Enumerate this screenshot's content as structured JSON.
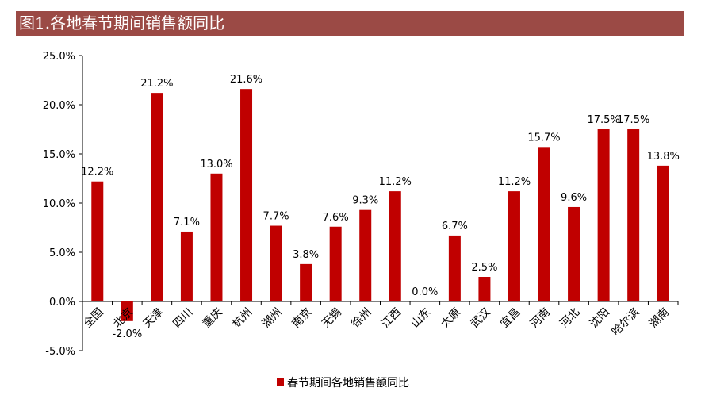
{
  "title": "图1.各地春节期间销售额同比",
  "chart_data": {
    "type": "bar",
    "title": "图1.各地春节期间销售额同比",
    "categories": [
      "全国",
      "北京",
      "天津",
      "四川",
      "重庆",
      "杭州",
      "湖州",
      "南京",
      "无锡",
      "徐州",
      "江西",
      "山东",
      "太原",
      "武汉",
      "宜昌",
      "河南",
      "河北",
      "沈阳",
      "哈尔滨",
      "湖南"
    ],
    "series": [
      {
        "name": "春节期间各地销售额同比",
        "values": [
          12.2,
          -2.0,
          21.2,
          7.1,
          13.0,
          21.6,
          7.7,
          3.8,
          7.6,
          9.3,
          11.2,
          0.0,
          6.7,
          2.5,
          11.2,
          15.7,
          9.6,
          17.5,
          17.5,
          13.8
        ],
        "labels": [
          "12.2%",
          "-2.0%",
          "21.2%",
          "7.1%",
          "13.0%",
          "21.6%",
          "7.7%",
          "3.8%",
          "7.6%",
          "9.3%",
          "11.2%",
          "0.0%",
          "6.7%",
          "2.5%",
          "11.2%",
          "15.7%",
          "9.6%",
          "17.5%",
          "17.5%",
          "13.8%"
        ],
        "color": "#c00000"
      }
    ],
    "ylim": [
      -5,
      25
    ],
    "yticks": [
      "-5.0%",
      "0.0%",
      "5.0%",
      "10.0%",
      "15.0%",
      "20.0%",
      "25.0%"
    ],
    "grid": false,
    "legend": "bottom"
  }
}
